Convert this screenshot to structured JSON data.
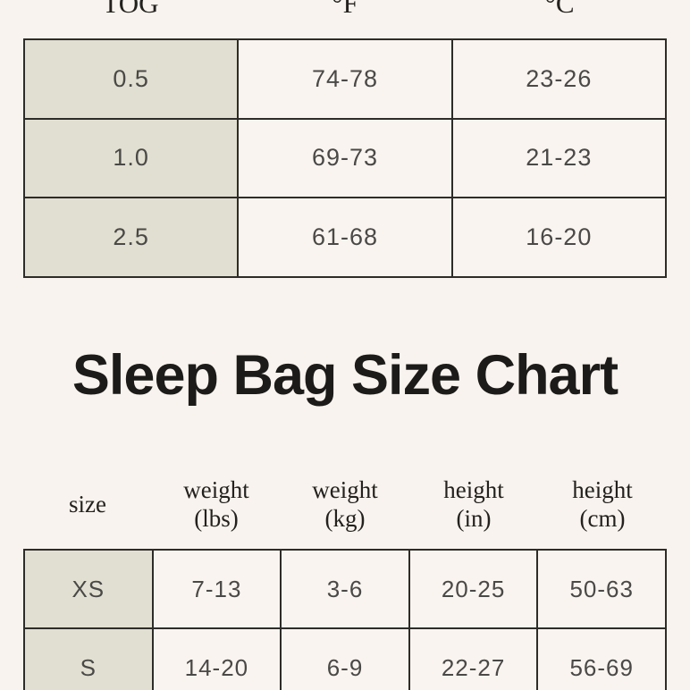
{
  "colors": {
    "background": "#f8f3ee",
    "cell_background": "#f9f4ef",
    "shaded_cell": "#e1dfd1",
    "border": "#2e2c28",
    "value_text": "#4a4947",
    "header_text": "#23211e",
    "title_text": "#1c1b19"
  },
  "tog_table": {
    "columns": [
      "TOG",
      "°F",
      "°C"
    ],
    "rows": [
      [
        "0.5",
        "74-78",
        "23-26"
      ],
      [
        "1.0",
        "69-73",
        "21-23"
      ],
      [
        "2.5",
        "61-68",
        "16-20"
      ]
    ]
  },
  "size_chart": {
    "title": "Sleep Bag Size Chart",
    "columns": [
      "size",
      "weight\n(lbs)",
      "weight\n(kg)",
      "height\n(in)",
      "height\n(cm)"
    ],
    "rows": [
      [
        "XS",
        "7-13",
        "3-6",
        "20-25",
        "50-63"
      ],
      [
        "S",
        "14-20",
        "6-9",
        "22-27",
        "56-69"
      ]
    ]
  }
}
